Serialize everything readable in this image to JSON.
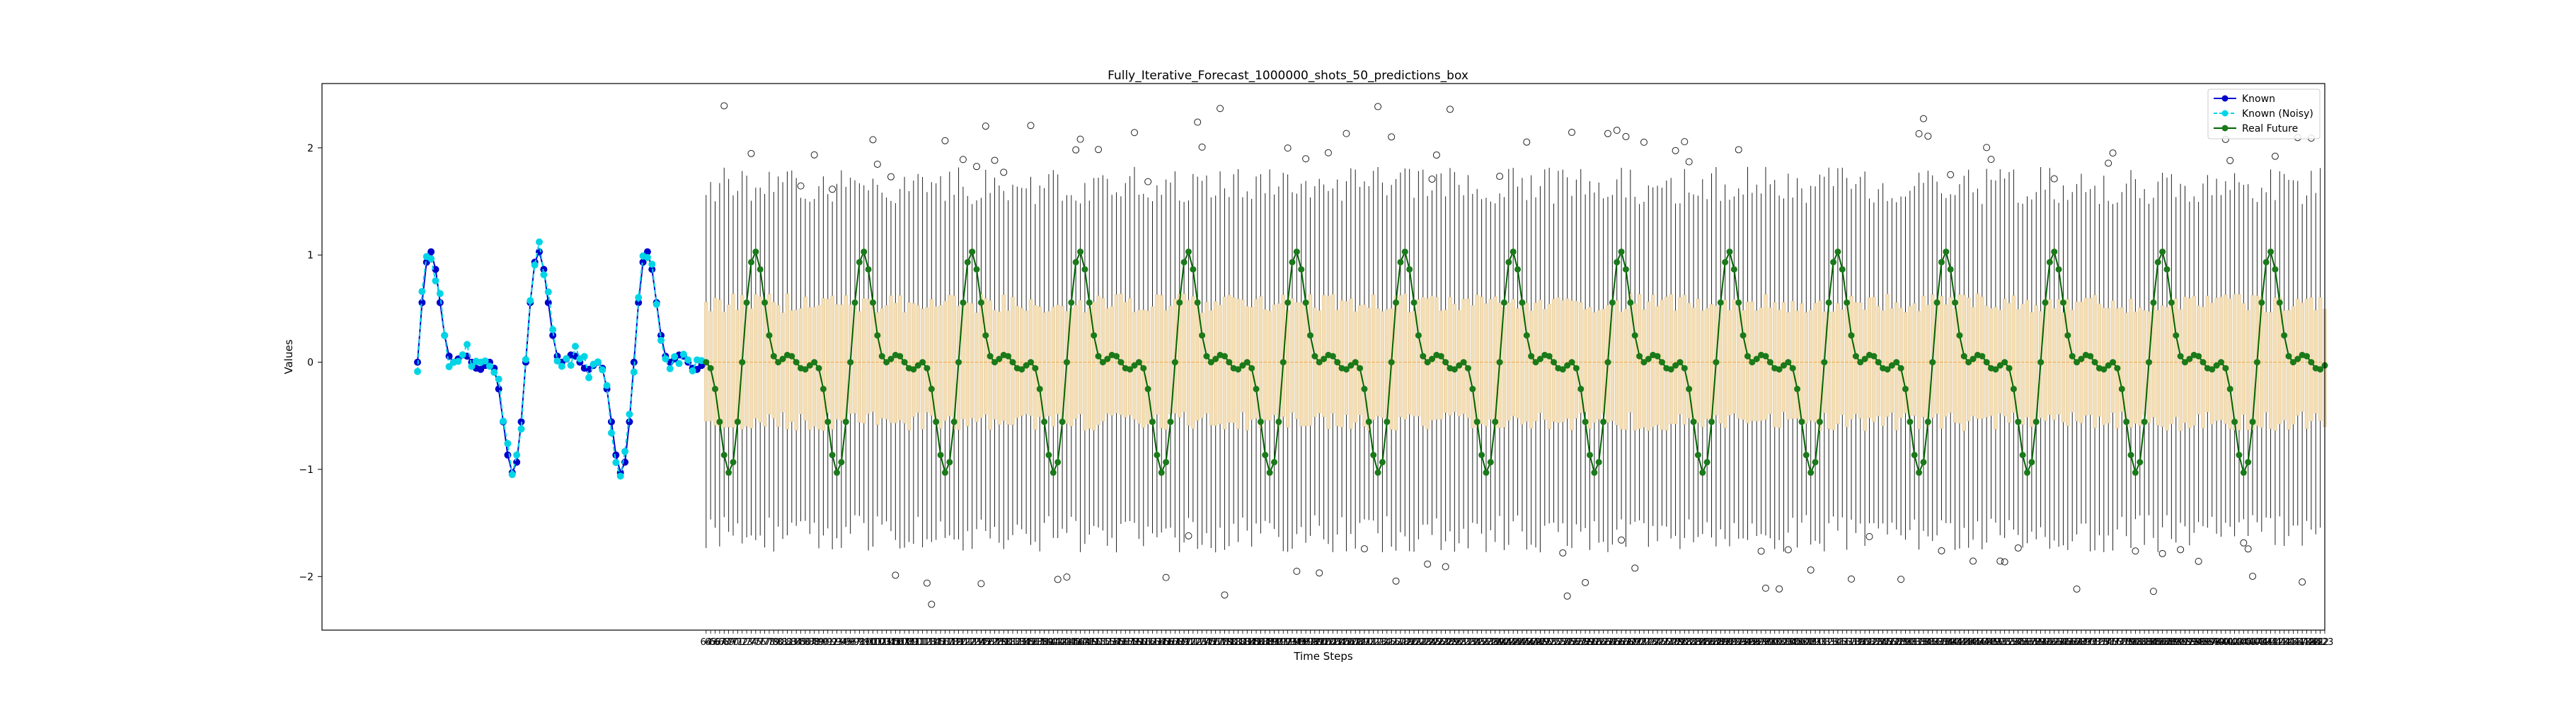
{
  "chart_data": {
    "type": "line",
    "title": "Fully_Iterative_Forecast_1000000_shots_50_predictions_box",
    "xlabel": "Time Steps",
    "ylabel": "Values",
    "ylim": [
      -2.5,
      2.6
    ],
    "y_ticks": [
      -2,
      -1,
      0,
      1,
      2
    ],
    "grid": false,
    "legend_position": "top-right",
    "known_range": [
      0,
      63
    ],
    "future_range": [
      64,
      423
    ],
    "period": 24,
    "amplitude_model": "0.5*sin(2*pi*t/24) + 0.5*sin(4*pi*t/24) + 0.25*sin(6*pi*t/24)",
    "box_stats": {
      "q1": -0.55,
      "q3": 0.55,
      "median": 0.0,
      "whisker_low": -1.6,
      "whisker_high": 1.65
    },
    "future_x_tick_labels": "dense overlapping integer labels 64 … 423",
    "series": [
      {
        "name": "Known",
        "color": "#0000cd",
        "marker": "circle",
        "line": "solid"
      },
      {
        "name": "Known (Noisy)",
        "color": "#00d5e6",
        "marker": "circle",
        "line": "dashed"
      },
      {
        "name": "Real Future",
        "color": "#006400",
        "marker": "circle",
        "line": "solid"
      }
    ],
    "box_color": "#f5deb3"
  }
}
